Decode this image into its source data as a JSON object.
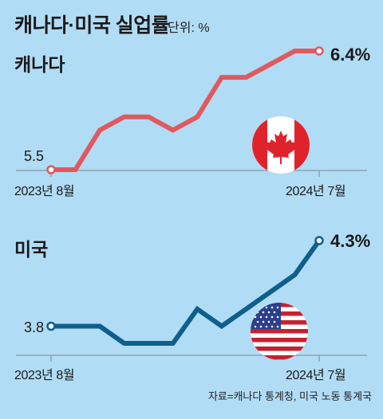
{
  "title": "캐나다·미국 실업률",
  "unit": "단위: %",
  "source": "자료=캐나다 통계청, 미국 노동 통계국",
  "colors": {
    "background": "#b1dcf5",
    "canada_line": "#df5a5e",
    "us_line": "#0f5f8c",
    "axis": "#8aa3b5"
  },
  "chart_data": [
    {
      "type": "line",
      "country": "캐나다",
      "flag": "canada-flag-icon",
      "x_start_label": "2023년 8월",
      "x_end_label": "2024년 7월",
      "start_value_label": "5.5",
      "end_value_label": "6.4%",
      "values": [
        5.5,
        5.5,
        5.8,
        5.9,
        5.9,
        5.8,
        5.9,
        6.2,
        6.2,
        6.3,
        6.4,
        6.4
      ],
      "color": "#df5a5e"
    },
    {
      "type": "line",
      "country": "미국",
      "flag": "usa-flag-icon",
      "x_start_label": "2023년 8월",
      "x_end_label": "2024년 7월",
      "start_value_label": "3.8",
      "end_value_label": "4.3%",
      "values": [
        3.8,
        3.8,
        3.8,
        3.7,
        3.7,
        3.7,
        3.9,
        3.8,
        3.9,
        4.0,
        4.1,
        4.3
      ],
      "color": "#0f5f8c"
    }
  ]
}
